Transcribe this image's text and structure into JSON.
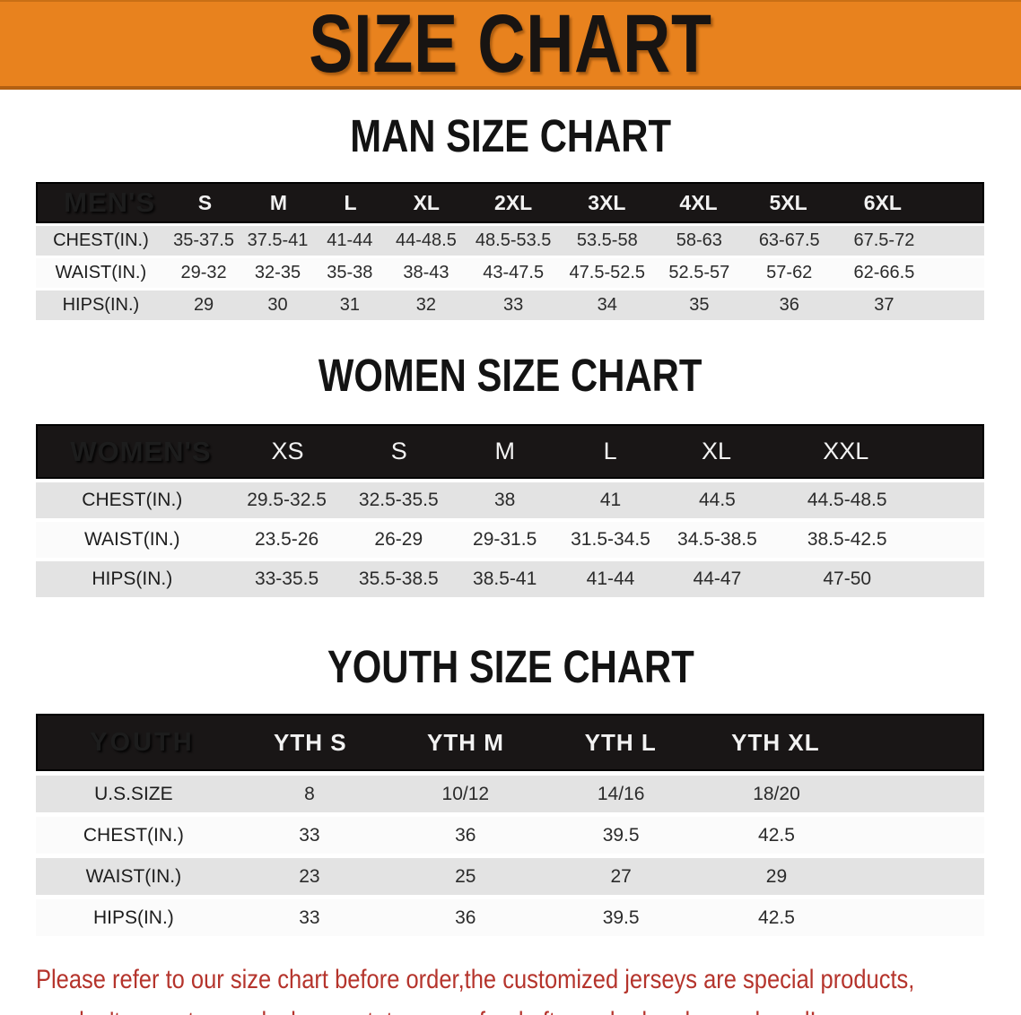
{
  "banner": {
    "title": "SIZE CHART",
    "bg_color": "#E8821E",
    "text_color": "#181412"
  },
  "tables": {
    "men": {
      "heading": "MAN SIZE CHART",
      "header_label": "MEN'S",
      "sizes": [
        "S",
        "M",
        "L",
        "XL",
        "2XL",
        "3XL",
        "4XL",
        "5XL",
        "6XL"
      ],
      "rows": [
        {
          "label": "CHEST(IN.)",
          "values": [
            "35-37.5",
            "37.5-41",
            "41-44",
            "44-48.5",
            "48.5-53.5",
            "53.5-58",
            "58-63",
            "63-67.5",
            "67.5-72"
          ]
        },
        {
          "label": "WAIST(IN.)",
          "values": [
            "29-32",
            "32-35",
            "35-38",
            "38-43",
            "43-47.5",
            "47.5-52.5",
            "52.5-57",
            "57-62",
            "62-66.5"
          ]
        },
        {
          "label": "HIPS(IN.)",
          "values": [
            "29",
            "30",
            "31",
            "32",
            "33",
            "34",
            "35",
            "36",
            "37"
          ]
        }
      ]
    },
    "women": {
      "heading": "WOMEN SIZE CHART",
      "header_label": "WOMEN'S",
      "sizes": [
        "XS",
        "S",
        "M",
        "L",
        "XL",
        "XXL"
      ],
      "rows": [
        {
          "label": "CHEST(IN.)",
          "values": [
            "29.5-32.5",
            "32.5-35.5",
            "38",
            "41",
            "44.5",
            "44.5-48.5"
          ]
        },
        {
          "label": "WAIST(IN.)",
          "values": [
            "23.5-26",
            "26-29",
            "29-31.5",
            "31.5-34.5",
            "34.5-38.5",
            "38.5-42.5"
          ]
        },
        {
          "label": "HIPS(IN.)",
          "values": [
            "33-35.5",
            "35.5-38.5",
            "38.5-41",
            "41-44",
            "44-47",
            "47-50"
          ]
        }
      ]
    },
    "youth": {
      "heading": "YOUTH SIZE CHART",
      "header_label": "YOUTH",
      "sizes": [
        "YTH S",
        "YTH M",
        "YTH L",
        "YTH XL"
      ],
      "rows": [
        {
          "label": "U.S.SIZE",
          "values": [
            "8",
            "10/12",
            "14/16",
            "18/20"
          ]
        },
        {
          "label": "CHEST(IN.)",
          "values": [
            "33",
            "36",
            "39.5",
            "42.5"
          ]
        },
        {
          "label": "WAIST(IN.)",
          "values": [
            "23",
            "25",
            "27",
            "29"
          ]
        },
        {
          "label": "HIPS(IN.)",
          "values": [
            "33",
            "36",
            "39.5",
            "42.5"
          ]
        }
      ]
    }
  },
  "table_style": {
    "header_bg": "#191616",
    "header_text": "#FFFFFF",
    "stripe_gray": "#E3E3E3",
    "stripe_white": "#FBFBFB"
  },
  "disclaimer": {
    "line1": "Please refer to our size chart before order,the customized jerseys are special products,",
    "line2": "we don't accept cancel, change, teturn or refund after order has been placed!",
    "color": "#B5342C"
  }
}
